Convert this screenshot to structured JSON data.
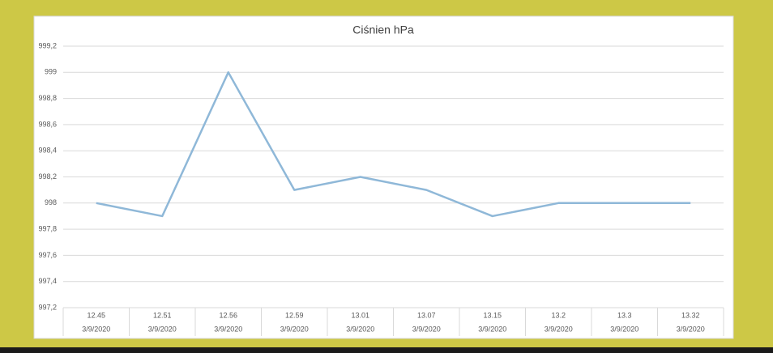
{
  "chart_data": {
    "type": "line",
    "title": "Ciśnien hPa",
    "categories": [
      "12.45",
      "12.51",
      "12.56",
      "12.59",
      "13.01",
      "13.07",
      "13.15",
      "13.2",
      "13.3",
      "13.32"
    ],
    "category_dates": [
      "3/9/2020",
      "3/9/2020",
      "3/9/2020",
      "3/9/2020",
      "3/9/2020",
      "3/9/2020",
      "3/9/2020",
      "3/9/2020",
      "3/9/2020",
      "3/9/2020"
    ],
    "values": [
      998,
      997.9,
      999,
      998.1,
      998.2,
      998.1,
      997.9,
      998,
      998,
      998
    ],
    "color": "#8fb8d8",
    "ylim": [
      997.2,
      999.2
    ],
    "yticks": [
      {
        "value": 997.2,
        "label": "997,2"
      },
      {
        "value": 997.4,
        "label": "997,4"
      },
      {
        "value": 997.6,
        "label": "997,6"
      },
      {
        "value": 997.8,
        "label": "997,8"
      },
      998,
      {
        "value": 998.2,
        "label": "998,2"
      },
      {
        "value": 998.4,
        "label": "998,4"
      },
      {
        "value": 998.6,
        "label": "998,6"
      },
      {
        "value": 998.8,
        "label": "998,8"
      },
      999,
      {
        "value": 999.2,
        "label": "999,2"
      }
    ],
    "grid": true
  }
}
